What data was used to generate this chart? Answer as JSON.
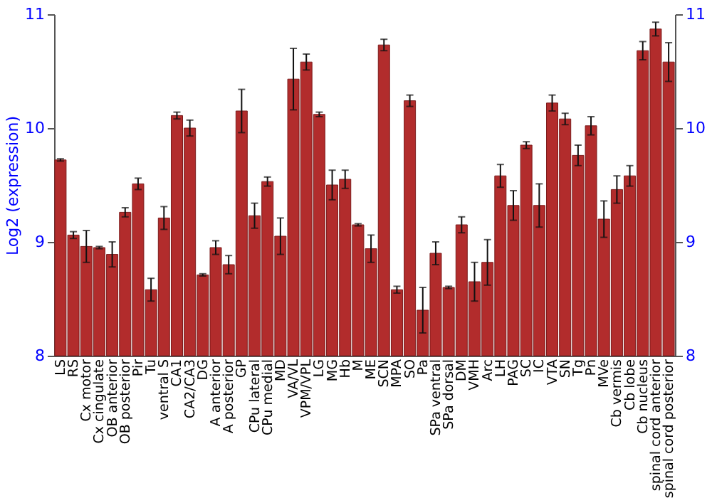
{
  "chart_data": {
    "type": "bar",
    "ylabel": "Log2 (expression)",
    "categories": [
      "LS",
      "RS",
      "Cx motor",
      "Cx cingulate",
      "OB anterior",
      "OB posterior",
      "Pir",
      "Tu",
      "ventral S",
      "CA1",
      "CA2/CA3",
      "DG",
      "A anterior",
      "A posterior",
      "GP",
      "CPu lateral",
      "CPu medial",
      "MD",
      "VA/VL",
      "VPM/VPL",
      "LG",
      "MG",
      "Hb",
      "M",
      "ME",
      "SCN",
      "MPA",
      "SO",
      "Pa",
      "SPa ventral",
      "SPa dorsal",
      "DM",
      "VMH",
      "Arc",
      "LH",
      "PAG",
      "SC",
      "IC",
      "VTA",
      "SN",
      "Tg",
      "Pn",
      "MVe",
      "Cb vermis",
      "Cb lobe",
      "Cb nucleus",
      "spinal cord anterior",
      "spinal cord posterior"
    ],
    "values": [
      9.72,
      9.06,
      8.96,
      8.95,
      8.89,
      9.26,
      9.51,
      8.58,
      9.21,
      10.11,
      10.0,
      8.71,
      8.95,
      8.8,
      10.15,
      9.23,
      9.53,
      9.05,
      10.43,
      10.58,
      10.12,
      9.5,
      9.55,
      9.15,
      8.94,
      10.73,
      8.58,
      10.24,
      8.4,
      8.9,
      8.6,
      9.15,
      8.65,
      8.82,
      9.58,
      9.32,
      9.85,
      9.32,
      10.22,
      10.08,
      9.76,
      10.02,
      9.2,
      9.46,
      9.58,
      10.68,
      10.87,
      10.58
    ],
    "errors": [
      0.01,
      0.03,
      0.14,
      0.01,
      0.11,
      0.04,
      0.05,
      0.1,
      0.1,
      0.03,
      0.07,
      0.01,
      0.06,
      0.08,
      0.19,
      0.11,
      0.04,
      0.16,
      0.27,
      0.07,
      0.02,
      0.13,
      0.08,
      0.01,
      0.12,
      0.05,
      0.03,
      0.05,
      0.2,
      0.1,
      0.01,
      0.07,
      0.17,
      0.2,
      0.1,
      0.13,
      0.03,
      0.19,
      0.07,
      0.05,
      0.09,
      0.08,
      0.16,
      0.12,
      0.09,
      0.08,
      0.06,
      0.17
    ],
    "color": "#b22c2c",
    "ylim": [
      8,
      11
    ],
    "yticks": [
      8,
      9,
      10,
      11
    ],
    "y2lim": [
      8,
      11
    ],
    "y2ticks": [
      8,
      9,
      10,
      11
    ],
    "grid": "y"
  }
}
